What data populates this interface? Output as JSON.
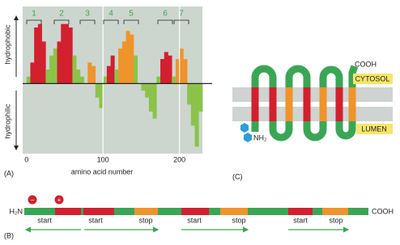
{
  "panel_a": {
    "label": "(A)",
    "y_axis_top": "hydrophobic",
    "y_axis_bottom": "hydrophilic",
    "x_axis_label": "amino acid number",
    "xlim": [
      -5,
      230
    ],
    "xticks": [
      0,
      100,
      200
    ],
    "ylim": [
      -1,
      1.1
    ],
    "grid": true,
    "segments": [
      "1",
      "2",
      "3",
      "4",
      "5",
      "6",
      "7"
    ],
    "profile": {
      "x": [
        0,
        5,
        10,
        15,
        20,
        25,
        30,
        35,
        40,
        45,
        50,
        55,
        60,
        65,
        70,
        75,
        80,
        85,
        90,
        95,
        100,
        105,
        110,
        115,
        120,
        125,
        130,
        135,
        140,
        145,
        150,
        155,
        160,
        165,
        170,
        175,
        180,
        185,
        190,
        195,
        200,
        205,
        210,
        215,
        220,
        225
      ],
      "values": [
        0.1,
        0.3,
        0.8,
        0.85,
        0.6,
        0.2,
        0.4,
        0.5,
        0.6,
        0.85,
        0.85,
        0.8,
        0.4,
        0.2,
        0.1,
        0.0,
        0.3,
        0.25,
        -0.2,
        -0.35,
        0.1,
        0.25,
        0.4,
        0.2,
        0.5,
        0.6,
        0.75,
        0.7,
        0.4,
        0.0,
        -0.1,
        -0.2,
        -0.4,
        -0.5,
        0.1,
        0.35,
        0.45,
        0.4,
        0.1,
        0.35,
        0.5,
        0.35,
        -0.3,
        -0.6,
        -0.9,
        -0.4
      ],
      "colors": [
        "#8bc34a",
        "#d2202e",
        "#d2202e",
        "#d2202e",
        "#d2202e",
        "#8bc34a",
        "#8bc34a",
        "#8bc34a",
        "#d2202e",
        "#d2202e",
        "#d2202e",
        "#d2202e",
        "#8bc34a",
        "#8bc34a",
        "#8bc34a",
        "#8bc34a",
        "#f0932b",
        "#f0932b",
        "#8bc34a",
        "#8bc34a",
        "#8bc34a",
        "#d2202e",
        "#d2202e",
        "#8bc34a",
        "#f0932b",
        "#f0932b",
        "#f0932b",
        "#f0932b",
        "#8bc34a",
        "#8bc34a",
        "#8bc34a",
        "#8bc34a",
        "#8bc34a",
        "#8bc34a",
        "#8bc34a",
        "#d2202e",
        "#d2202e",
        "#d2202e",
        "#8bc34a",
        "#f0932b",
        "#f0932b",
        "#f0932b",
        "#8bc34a",
        "#8bc34a",
        "#8bc34a",
        "#8bc34a"
      ]
    }
  },
  "panel_b": {
    "label": "(B)",
    "n_terminus": "H₂N",
    "c_terminus": "COOH",
    "charges": [
      "−",
      "+"
    ],
    "signals": [
      "start",
      "start",
      "stop",
      "start",
      "stop",
      "start",
      "stop"
    ]
  },
  "panel_c": {
    "label": "(C)",
    "c_terminus": "COOH",
    "n_terminus": "NH₂",
    "cytosol": "CYTOSOL",
    "lumen": "LUMEN"
  }
}
